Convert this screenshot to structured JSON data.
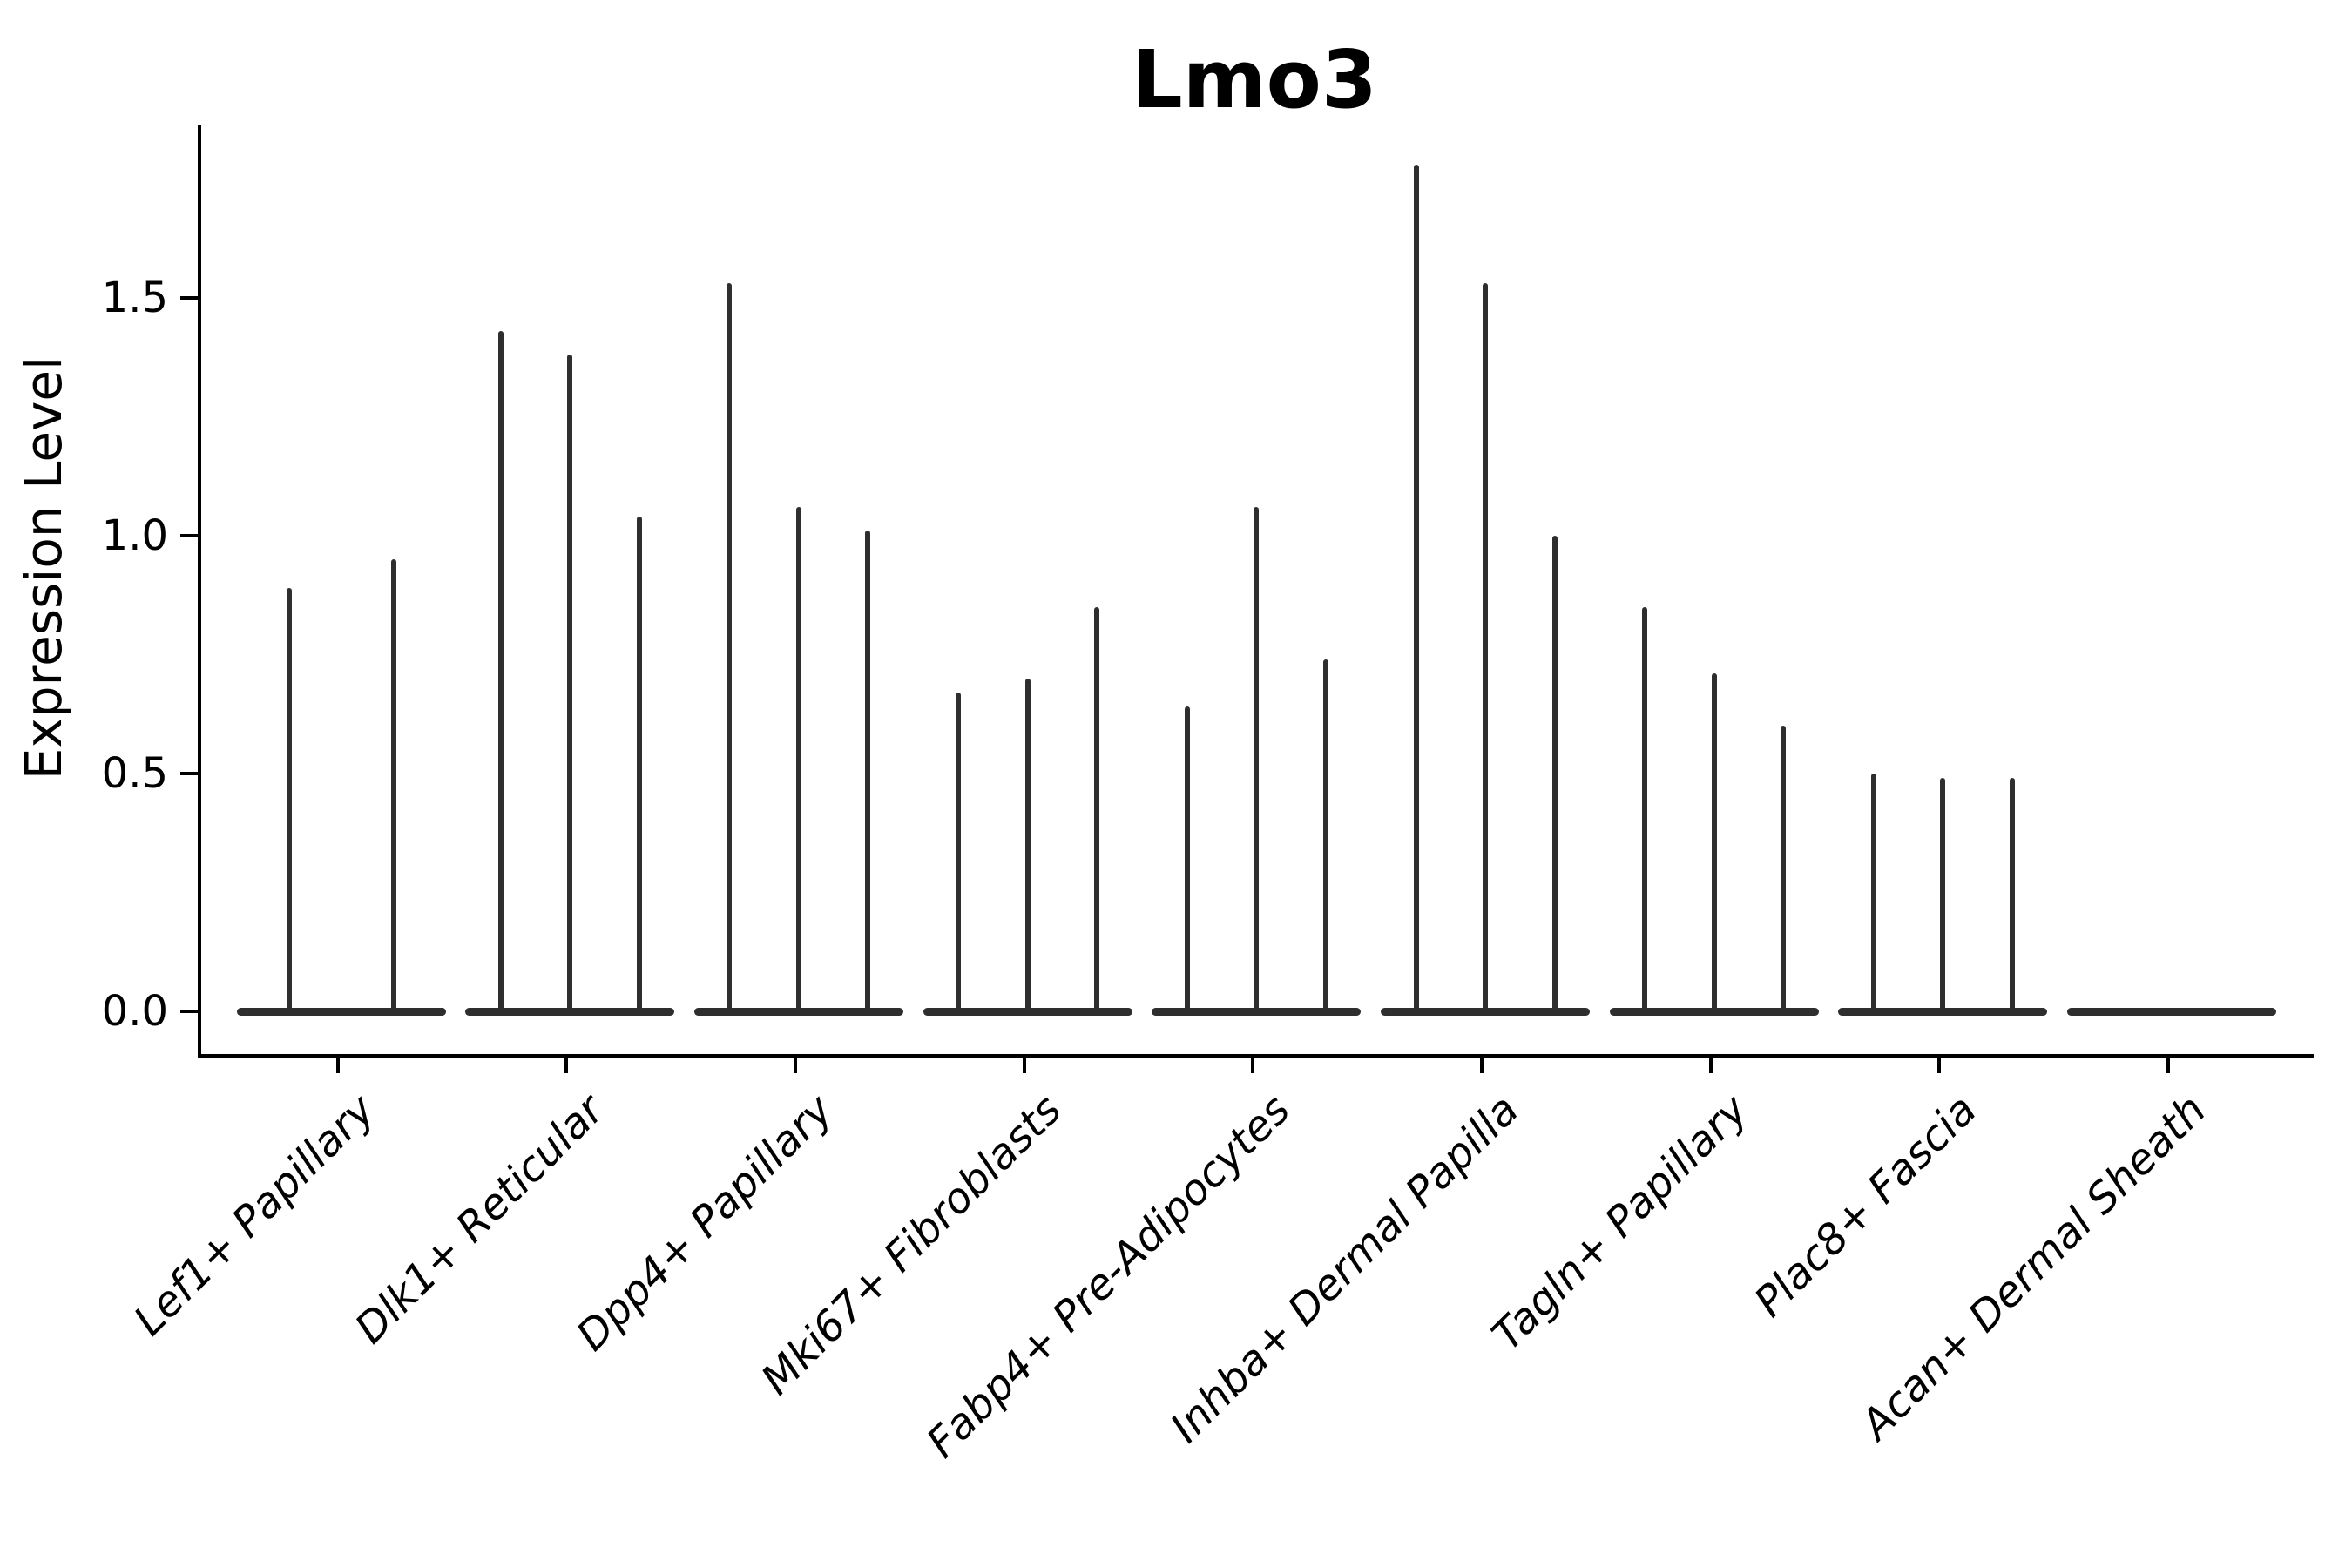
{
  "chart_data": {
    "type": "violin",
    "title": "Lmo3",
    "ylabel": "Expression Level",
    "xlabel": "",
    "ylim": [
      0,
      1.86
    ],
    "yticks": [
      0.0,
      0.5,
      1.0,
      1.5
    ],
    "ytick_labels": [
      "0.0",
      "0.5",
      "1.0",
      "1.5"
    ],
    "grid": false,
    "legend": "none",
    "violin_color": "#2e2e2e",
    "axis_color": "#000000",
    "categories": [
      "Lef1+ Papillary",
      "Dlk1+ Reticular",
      "Dpp4+ Papillary",
      "Mki67+ Fibroblasts",
      "Fabp4+ Pre-Adipocytes",
      "Inhba+ Dermal Papilla",
      "Tagln+ Papillary",
      "Plac8+ Fascia",
      "Acan+ Dermal Sheath"
    ],
    "groups": [
      {
        "label": "Lef1+ Papillary",
        "violin_max_values": [
          0.89,
          0.95
        ]
      },
      {
        "label": "Dlk1+ Reticular",
        "violin_max_values": [
          1.43,
          1.38,
          1.04
        ]
      },
      {
        "label": "Dpp4+ Papillary",
        "violin_max_values": [
          1.53,
          1.06,
          1.01
        ]
      },
      {
        "label": "Mki67+ Fibroblasts",
        "violin_max_values": [
          0.67,
          0.7,
          0.85
        ]
      },
      {
        "label": "Fabp4+ Pre-Adipocytes",
        "violin_max_values": [
          0.64,
          1.06,
          0.74
        ]
      },
      {
        "label": "Inhba+ Dermal Papilla",
        "violin_max_values": [
          1.78,
          1.53,
          1.0
        ]
      },
      {
        "label": "Tagln+ Papillary",
        "violin_max_values": [
          0.85,
          0.71,
          0.6
        ]
      },
      {
        "label": "Plac8+ Fascia",
        "violin_max_values": [
          0.5,
          0.49,
          0.49
        ]
      },
      {
        "label": "Acan+ Dermal Sheath",
        "violin_max_values": [
          0.0,
          0.0,
          0.0
        ]
      }
    ]
  }
}
